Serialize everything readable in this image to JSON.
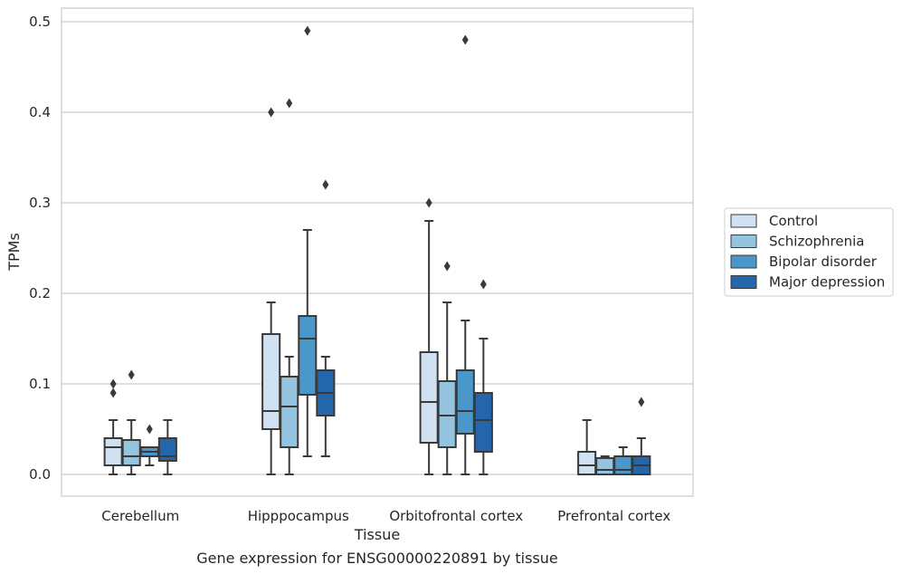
{
  "chart_data": {
    "type": "box",
    "title": "",
    "caption": "Gene expression for ENSG00000220891 by tissue",
    "xlabel": "Tissue",
    "ylabel": "TPMs",
    "ylim": [
      -0.024,
      0.515
    ],
    "yticks": [
      "0.0",
      "0.1",
      "0.2",
      "0.3",
      "0.4",
      "0.5"
    ],
    "ytick_values": [
      0.0,
      0.1,
      0.2,
      0.3,
      0.4,
      0.5
    ],
    "grid": true,
    "legend_position": "right",
    "categories": [
      "Cerebellum",
      "Hipppocampus",
      "Orbitofrontal cortex",
      "Prefrontal cortex"
    ],
    "series": [
      {
        "name": "Control",
        "color": "#d0e1f2",
        "boxes": [
          {
            "whisker_low": 0.0,
            "q1": 0.01,
            "median": 0.03,
            "q3": 0.04,
            "whisker_high": 0.06,
            "outliers": [
              0.1,
              0.09
            ]
          },
          {
            "whisker_low": 0.0,
            "q1": 0.05,
            "median": 0.07,
            "q3": 0.155,
            "whisker_high": 0.19,
            "outliers": [
              0.4
            ]
          },
          {
            "whisker_low": 0.0,
            "q1": 0.035,
            "median": 0.08,
            "q3": 0.135,
            "whisker_high": 0.28,
            "outliers": [
              0.3
            ]
          },
          {
            "whisker_low": 0.0,
            "q1": 0.0,
            "median": 0.01,
            "q3": 0.025,
            "whisker_high": 0.06,
            "outliers": []
          }
        ]
      },
      {
        "name": "Schizophrenia",
        "color": "#94c4df",
        "boxes": [
          {
            "whisker_low": 0.0,
            "q1": 0.01,
            "median": 0.02,
            "q3": 0.038,
            "whisker_high": 0.06,
            "outliers": [
              0.11
            ]
          },
          {
            "whisker_low": 0.0,
            "q1": 0.03,
            "median": 0.075,
            "q3": 0.108,
            "whisker_high": 0.13,
            "outliers": [
              0.41
            ]
          },
          {
            "whisker_low": 0.0,
            "q1": 0.03,
            "median": 0.065,
            "q3": 0.103,
            "whisker_high": 0.19,
            "outliers": [
              0.23
            ]
          },
          {
            "whisker_low": 0.0,
            "q1": 0.0,
            "median": 0.005,
            "q3": 0.018,
            "whisker_high": 0.02,
            "outliers": []
          }
        ]
      },
      {
        "name": "Bipolar disorder",
        "color": "#4a98c9",
        "boxes": [
          {
            "whisker_low": 0.01,
            "q1": 0.02,
            "median": 0.025,
            "q3": 0.03,
            "whisker_high": 0.03,
            "outliers": [
              0.05
            ]
          },
          {
            "whisker_low": 0.02,
            "q1": 0.088,
            "median": 0.15,
            "q3": 0.175,
            "whisker_high": 0.27,
            "outliers": [
              0.49
            ]
          },
          {
            "whisker_low": 0.0,
            "q1": 0.045,
            "median": 0.07,
            "q3": 0.115,
            "whisker_high": 0.17,
            "outliers": [
              0.48
            ]
          },
          {
            "whisker_low": 0.0,
            "q1": 0.0,
            "median": 0.005,
            "q3": 0.02,
            "whisker_high": 0.03,
            "outliers": []
          }
        ]
      },
      {
        "name": "Major depression",
        "color": "#2366ac",
        "boxes": [
          {
            "whisker_low": 0.0,
            "q1": 0.015,
            "median": 0.02,
            "q3": 0.04,
            "whisker_high": 0.06,
            "outliers": []
          },
          {
            "whisker_low": 0.02,
            "q1": 0.065,
            "median": 0.09,
            "q3": 0.115,
            "whisker_high": 0.13,
            "outliers": [
              0.32
            ]
          },
          {
            "whisker_low": 0.0,
            "q1": 0.025,
            "median": 0.06,
            "q3": 0.09,
            "whisker_high": 0.15,
            "outliers": [
              0.21
            ]
          },
          {
            "whisker_low": 0.0,
            "q1": 0.0,
            "median": 0.01,
            "q3": 0.02,
            "whisker_high": 0.04,
            "outliers": [
              0.08
            ]
          }
        ]
      }
    ]
  }
}
